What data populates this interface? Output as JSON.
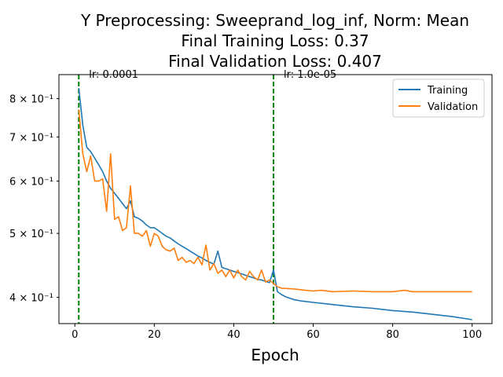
{
  "chart_data": {
    "type": "line",
    "title_lines": [
      "Y Preprocessing: Sweeprand_log_inf, Norm: Mean",
      "Final Training Loss: 0.37",
      "Final Validation Loss: 0.407"
    ],
    "xlabel": "Epoch",
    "ylabel": "",
    "xlim": [
      -4,
      105
    ],
    "ylim": [
      0.365,
      0.87
    ],
    "yscale": "log",
    "grid": false,
    "legend_position": "top-right",
    "x_ticks": [
      0,
      20,
      40,
      60,
      80,
      100
    ],
    "y_ticks": [
      {
        "value": 0.4,
        "label": "4 × 10⁻¹"
      },
      {
        "value": 0.5,
        "label": "5 × 10⁻¹"
      },
      {
        "value": 0.6,
        "label": "6 × 10⁻¹"
      },
      {
        "value": 0.7,
        "label": "7 × 10⁻¹"
      },
      {
        "value": 0.8,
        "label": "8 × 10⁻¹"
      }
    ],
    "vlines": [
      {
        "x": 1,
        "label": "lr: 0.0001",
        "color": "#008000"
      },
      {
        "x": 50,
        "label": "lr: 1.0e-05",
        "color": "#008000"
      }
    ],
    "series": [
      {
        "name": "Training",
        "color": "#1f77b4",
        "points": [
          [
            1,
            0.83
          ],
          [
            2,
            0.73
          ],
          [
            3,
            0.675
          ],
          [
            4,
            0.665
          ],
          [
            5,
            0.65
          ],
          [
            6,
            0.635
          ],
          [
            7,
            0.62
          ],
          [
            8,
            0.6
          ],
          [
            9,
            0.585
          ],
          [
            10,
            0.575
          ],
          [
            11,
            0.565
          ],
          [
            12,
            0.555
          ],
          [
            13,
            0.545
          ],
          [
            14,
            0.56
          ],
          [
            15,
            0.53
          ],
          [
            16,
            0.527
          ],
          [
            17,
            0.522
          ],
          [
            18,
            0.515
          ],
          [
            19,
            0.51
          ],
          [
            20,
            0.51
          ],
          [
            21,
            0.505
          ],
          [
            22,
            0.5
          ],
          [
            23,
            0.495
          ],
          [
            24,
            0.492
          ],
          [
            25,
            0.487
          ],
          [
            26,
            0.482
          ],
          [
            27,
            0.478
          ],
          [
            28,
            0.474
          ],
          [
            29,
            0.47
          ],
          [
            30,
            0.466
          ],
          [
            31,
            0.462
          ],
          [
            32,
            0.459
          ],
          [
            33,
            0.455
          ],
          [
            34,
            0.452
          ],
          [
            35,
            0.449
          ],
          [
            36,
            0.47
          ],
          [
            37,
            0.444
          ],
          [
            38,
            0.442
          ],
          [
            39,
            0.44
          ],
          [
            40,
            0.438
          ],
          [
            41,
            0.436
          ],
          [
            42,
            0.434
          ],
          [
            43,
            0.432
          ],
          [
            44,
            0.43
          ],
          [
            45,
            0.428
          ],
          [
            46,
            0.426
          ],
          [
            47,
            0.425
          ],
          [
            48,
            0.423
          ],
          [
            49,
            0.421
          ],
          [
            50,
            0.44
          ],
          [
            51,
            0.408
          ],
          [
            52,
            0.404
          ],
          [
            53,
            0.401
          ],
          [
            55,
            0.397
          ],
          [
            57,
            0.395
          ],
          [
            60,
            0.393
          ],
          [
            65,
            0.39
          ],
          [
            70,
            0.387
          ],
          [
            75,
            0.385
          ],
          [
            80,
            0.382
          ],
          [
            85,
            0.38
          ],
          [
            90,
            0.377
          ],
          [
            95,
            0.374
          ],
          [
            100,
            0.37
          ]
        ]
      },
      {
        "name": "Validation",
        "color": "#ff7f0e",
        "points": [
          [
            1,
            0.77
          ],
          [
            2,
            0.66
          ],
          [
            3,
            0.62
          ],
          [
            4,
            0.655
          ],
          [
            5,
            0.6
          ],
          [
            6,
            0.6
          ],
          [
            7,
            0.605
          ],
          [
            8,
            0.54
          ],
          [
            9,
            0.66
          ],
          [
            10,
            0.525
          ],
          [
            11,
            0.53
          ],
          [
            12,
            0.505
          ],
          [
            13,
            0.51
          ],
          [
            14,
            0.59
          ],
          [
            15,
            0.5
          ],
          [
            16,
            0.5
          ],
          [
            17,
            0.495
          ],
          [
            18,
            0.505
          ],
          [
            19,
            0.478
          ],
          [
            20,
            0.5
          ],
          [
            21,
            0.495
          ],
          [
            22,
            0.478
          ],
          [
            23,
            0.472
          ],
          [
            24,
            0.47
          ],
          [
            25,
            0.475
          ],
          [
            26,
            0.455
          ],
          [
            27,
            0.46
          ],
          [
            28,
            0.452
          ],
          [
            29,
            0.455
          ],
          [
            30,
            0.45
          ],
          [
            31,
            0.46
          ],
          [
            32,
            0.448
          ],
          [
            33,
            0.48
          ],
          [
            34,
            0.44
          ],
          [
            35,
            0.45
          ],
          [
            36,
            0.435
          ],
          [
            37,
            0.44
          ],
          [
            38,
            0.43
          ],
          [
            39,
            0.44
          ],
          [
            40,
            0.428
          ],
          [
            41,
            0.44
          ],
          [
            42,
            0.43
          ],
          [
            43,
            0.425
          ],
          [
            44,
            0.438
          ],
          [
            45,
            0.43
          ],
          [
            46,
            0.425
          ],
          [
            47,
            0.44
          ],
          [
            48,
            0.422
          ],
          [
            49,
            0.425
          ],
          [
            50,
            0.42
          ],
          [
            51,
            0.415
          ],
          [
            52,
            0.413
          ],
          [
            55,
            0.412
          ],
          [
            58,
            0.41
          ],
          [
            60,
            0.409
          ],
          [
            62,
            0.41
          ],
          [
            65,
            0.408
          ],
          [
            70,
            0.409
          ],
          [
            75,
            0.408
          ],
          [
            80,
            0.408
          ],
          [
            83,
            0.41
          ],
          [
            85,
            0.408
          ],
          [
            90,
            0.408
          ],
          [
            95,
            0.408
          ],
          [
            100,
            0.408
          ]
        ]
      }
    ]
  }
}
